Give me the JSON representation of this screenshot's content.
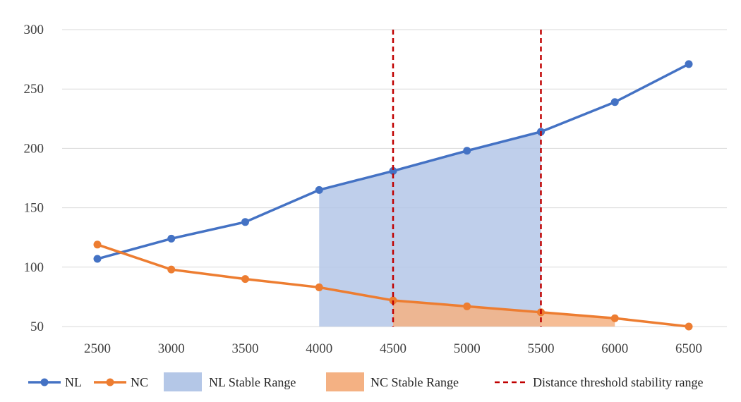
{
  "chart_data": {
    "type": "line",
    "x": [
      2500,
      3000,
      3500,
      4000,
      4500,
      5000,
      5500,
      6000,
      6500
    ],
    "series": [
      {
        "name": "NL",
        "values": [
          107,
          124,
          138,
          165,
          181,
          198,
          214,
          239,
          271
        ],
        "color": "#4472C4"
      },
      {
        "name": "NC",
        "values": [
          119,
          98,
          90,
          83,
          72,
          67,
          62,
          57,
          50
        ],
        "color": "#ED7D31"
      }
    ],
    "bands": [
      {
        "name": "NL Stable Range",
        "series": "NL",
        "x_range": [
          4000,
          5500
        ],
        "color": "#B4C7E7"
      },
      {
        "name": "NC Stable Range",
        "series": "NC",
        "x_range": [
          4500,
          6000
        ],
        "color": "#F4B183"
      }
    ],
    "threshold_lines": {
      "name": "Distance threshold stability range",
      "x": [
        4500,
        5500
      ],
      "color": "#C00000"
    },
    "x_ticks": [
      "2500",
      "3000",
      "3500",
      "4000",
      "4500",
      "5000",
      "5500",
      "6000",
      "6500"
    ],
    "y_ticks": [
      "50",
      "100",
      "150",
      "200",
      "250",
      "300"
    ],
    "ylim": [
      50,
      300
    ],
    "grid": "horizontal",
    "legend_position": "bottom"
  }
}
